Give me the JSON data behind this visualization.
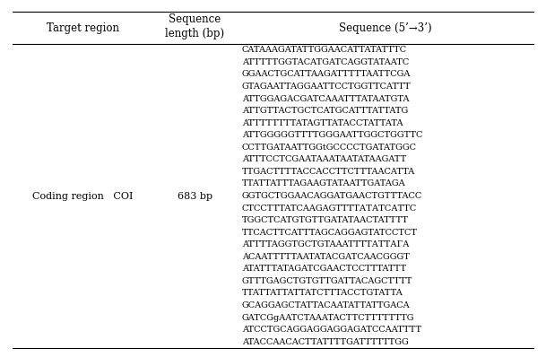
{
  "headers": [
    "Target region",
    "Sequence\nlength (bp)",
    "Sequence (5’→3’)"
  ],
  "col1_line1": "Coding region   COI",
  "col2_text": "683 bp",
  "sequence_lines": [
    "CATAAAGATATTGGAACATTATATTTC",
    "ATTTTTGGTACATGATCAGGTATAATC",
    "GGAACTGCATTAAGATTTTTAATTCGA",
    "GTAGAATTAGGAATTCCTGGTTCATTT",
    "ATTGGAGACGATCAAATTTATAATGTA",
    "ATTGTTACTGCTCATGCATTTATTATG",
    "ATTTTTTTTATAGТTATACCTATTATA",
    "ATTGGGGGTTTTGGGAATTGGCTGGTTC",
    "CCTTGATAATTGGtGCCCCTGATATGGC",
    "ATTTCCTCGAATAAATAATATAAGATT",
    "TTGACTТTTACCACCTTCTTTAACATTA",
    "TTATTATTTAGAAGTATAATTGATAGA",
    "GGTGCTGGAACAGGATGAACTGTTTACC",
    "CTCCTTTATCAAGAGTТТТАТАТСАТТС",
    "TGGCTCATGTGTTGATATAACTATTTT",
    "TTCACTTCATTTAGCAGGAGTATCCTCT",
    "ATTTTAGGTGCTGTAAATТТТАТТАГА",
    "ACAATTТTTAATATACGATCAACGGGT",
    "ATATTTATAGATCGAACTCCTТTATTT",
    "GTTTGAGCTGTGTTGATTACAGCTTTT",
    "TTATTATTATTATCTTTACCTGTATTA",
    "GCAGGAGCTATTACAATATTATTGACA",
    "GATCGgAATCTAAATACTTCTTTTTTTG",
    "ATCCTGCAGGAGGAGGAGATCCAATTTT",
    "ATACCAACACTTATТTTGATTТTТТGG"
  ],
  "table_bg": "#ffffff",
  "text_color": "#000000",
  "border_color": "#000000"
}
